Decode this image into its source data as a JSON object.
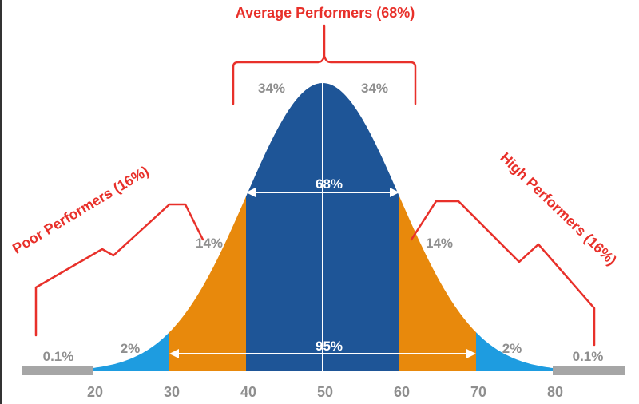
{
  "chart_data": {
    "type": "area",
    "x_ticks": [
      20,
      30,
      40,
      50,
      60,
      70,
      80
    ],
    "xlim": [
      15,
      85
    ],
    "mean": 50,
    "sd": 10,
    "bands": [
      {
        "range": [
          15,
          20
        ],
        "color": "#a6a6a6",
        "label": "0.1%"
      },
      {
        "range": [
          20,
          30
        ],
        "color": "#1e9ce0",
        "label": "2%"
      },
      {
        "range": [
          30,
          40
        ],
        "color": "#e8890c",
        "label": "14%"
      },
      {
        "range": [
          40,
          50
        ],
        "color": "#1e5597",
        "label": "34%"
      },
      {
        "range": [
          50,
          60
        ],
        "color": "#1e5597",
        "label": "34%"
      },
      {
        "range": [
          60,
          70
        ],
        "color": "#e8890c",
        "label": "14%"
      },
      {
        "range": [
          70,
          80
        ],
        "color": "#1e9ce0",
        "label": "2%"
      },
      {
        "range": [
          80,
          85
        ],
        "color": "#a6a6a6",
        "label": "0.1%"
      }
    ],
    "spans": [
      {
        "range": [
          40,
          60
        ],
        "label": "68%"
      },
      {
        "range": [
          30,
          70
        ],
        "label": "95%"
      }
    ],
    "groups": [
      {
        "label": "Average Performers (68%)"
      },
      {
        "label": "Poor Performers (16%)"
      },
      {
        "label": "High Performers (16%)"
      }
    ]
  }
}
